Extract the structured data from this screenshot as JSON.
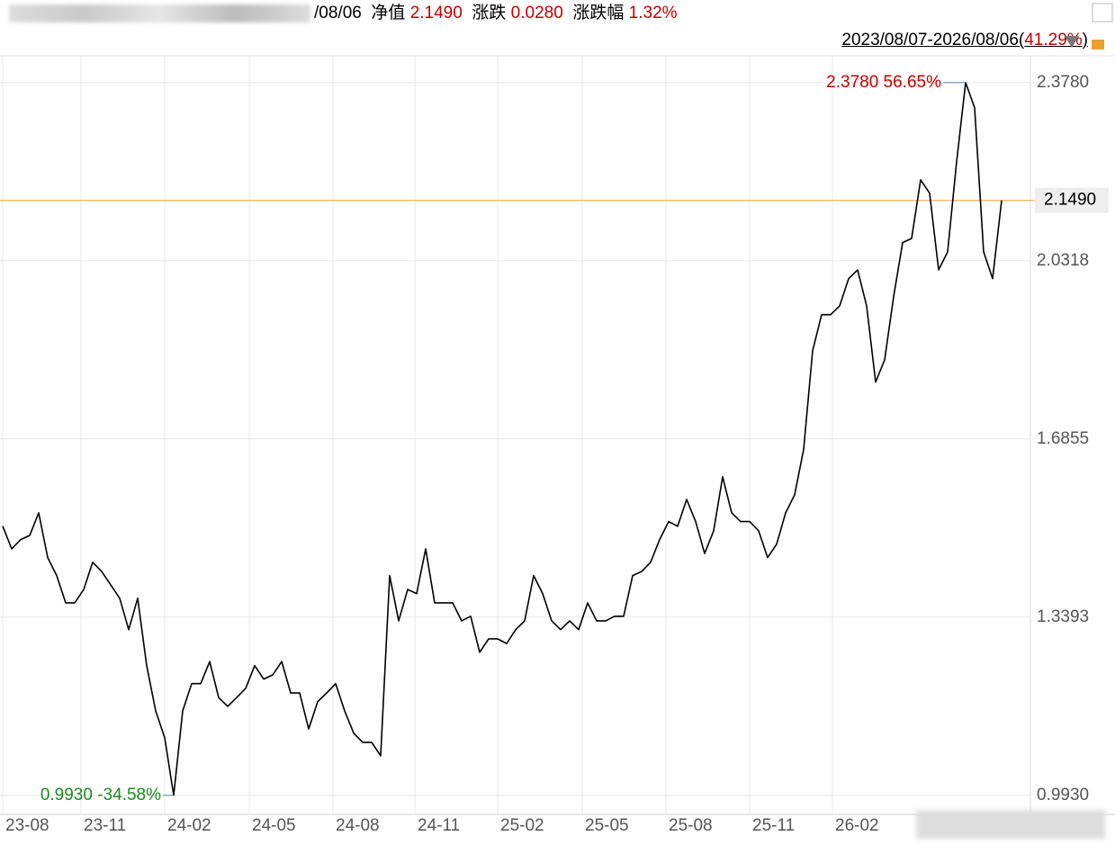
{
  "header": {
    "date": "/08/06",
    "nav_label": "净值",
    "nav": "2.1490",
    "change_label": "涨跌",
    "change": "0.0280",
    "pct_label": "涨跌幅",
    "pct": "1.32%",
    "range": "2023/08/07-2026/08/06(",
    "range_pct": "41.29%",
    "range_close": ")"
  },
  "chart_data": {
    "type": "line",
    "series": [
      {
        "color": "#000000",
        "values": [
          1.516,
          1.472,
          1.49,
          1.498,
          1.542,
          1.455,
          1.42,
          1.367,
          1.367,
          1.393,
          1.446,
          1.428,
          1.402,
          1.376,
          1.315,
          1.376,
          1.245,
          1.157,
          1.105,
          0.993,
          1.157,
          1.21,
          1.21,
          1.253,
          1.183,
          1.166,
          1.183,
          1.201,
          1.245,
          1.219,
          1.227,
          1.253,
          1.192,
          1.192,
          1.122,
          1.175,
          1.192,
          1.21,
          1.157,
          1.114,
          1.096,
          1.096,
          1.07,
          1.42,
          1.332,
          1.393,
          1.385,
          1.472,
          1.367,
          1.367,
          1.367,
          1.332,
          1.341,
          1.271,
          1.297,
          1.297,
          1.288,
          1.315,
          1.332,
          1.42,
          1.385,
          1.332,
          1.315,
          1.332,
          1.315,
          1.367,
          1.332,
          1.332,
          1.341,
          1.341,
          1.42,
          1.428,
          1.446,
          1.49,
          1.525,
          1.516,
          1.568,
          1.525,
          1.463,
          1.507,
          1.612,
          1.542,
          1.525,
          1.525,
          1.507,
          1.455,
          1.481,
          1.542,
          1.577,
          1.665,
          1.857,
          1.927,
          1.927,
          1.944,
          1.997,
          2.014,
          1.944,
          1.796,
          1.839,
          1.962,
          2.067,
          2.075,
          2.189,
          2.163,
          2.014,
          2.049,
          2.224,
          2.378,
          2.329,
          2.049,
          1.997,
          2.149
        ]
      }
    ],
    "xlim": [
      0,
      111
    ],
    "xticks": [
      {
        "value": 0,
        "label": "23-08"
      },
      {
        "value": 8.7,
        "label": "23-11"
      },
      {
        "value": 18,
        "label": "24-02"
      },
      {
        "value": 27.4,
        "label": "24-05"
      },
      {
        "value": 36.7,
        "label": "24-08"
      },
      {
        "value": 45.8,
        "label": "24-11"
      },
      {
        "value": 55,
        "label": "25-02"
      },
      {
        "value": 64.4,
        "label": "25-05"
      },
      {
        "value": 73.7,
        "label": "25-08"
      },
      {
        "value": 83,
        "label": "25-11"
      },
      {
        "value": 92.2,
        "label": "26-02"
      }
    ],
    "ylim": [
      0.956,
      2.43
    ],
    "yticks": [
      {
        "value": 0.993,
        "label": "0.9930"
      },
      1.3393,
      1.6855,
      2.0318,
      {
        "value": 2.378,
        "label": "2.3780"
      }
    ],
    "grid": true,
    "current_line": {
      "value": 2.149,
      "label": "2.1490",
      "color": "#e8a030"
    },
    "max_annotation": {
      "text": "2.3780 56.65%",
      "color": "#c00000"
    },
    "min_annotation": {
      "text": "0.9930 -34.58%",
      "color": "#1a8a1a"
    }
  }
}
